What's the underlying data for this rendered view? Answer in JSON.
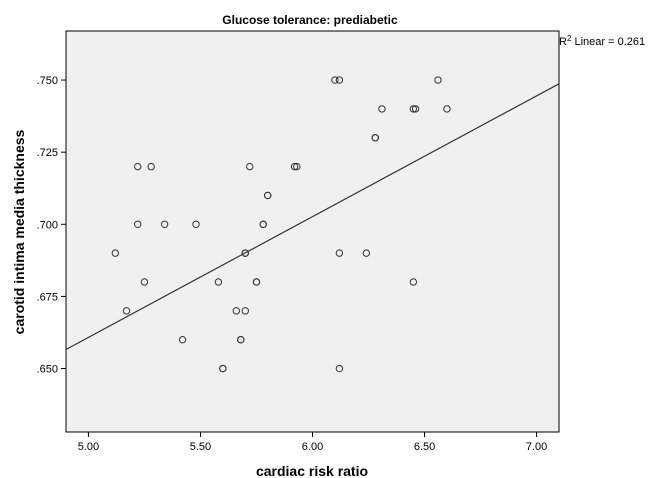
{
  "chart_data": {
    "type": "scatter",
    "title": "Glucose tolerance: prediabetic",
    "xlabel": "cardiac risk ratio",
    "ylabel": "carotid intima media thickness",
    "xlim": [
      4.9,
      7.1
    ],
    "ylim": [
      0.628,
      0.767
    ],
    "x_ticks": [
      5.0,
      5.5,
      6.0,
      6.5,
      7.0
    ],
    "x_tick_labels": [
      "5.00",
      "5.50",
      "6.00",
      "6.50",
      "7.00"
    ],
    "y_ticks": [
      0.65,
      0.675,
      0.7,
      0.725,
      0.75
    ],
    "y_tick_labels": [
      ".650",
      ".675",
      ".700",
      ".725",
      ".750"
    ],
    "grid": false,
    "fit_line": {
      "label_prefix": "R",
      "label_sup": "2",
      "label_rest": " Linear = 0.261",
      "x": [
        4.9,
        7.1
      ],
      "y": [
        0.6566,
        0.7487
      ]
    },
    "points": [
      {
        "x": 5.12,
        "y": 0.69
      },
      {
        "x": 5.17,
        "y": 0.67
      },
      {
        "x": 5.22,
        "y": 0.72
      },
      {
        "x": 5.28,
        "y": 0.72
      },
      {
        "x": 5.22,
        "y": 0.7
      },
      {
        "x": 5.25,
        "y": 0.68
      },
      {
        "x": 5.34,
        "y": 0.7
      },
      {
        "x": 5.42,
        "y": 0.66
      },
      {
        "x": 5.48,
        "y": 0.7
      },
      {
        "x": 5.58,
        "y": 0.68
      },
      {
        "x": 5.6,
        "y": 0.65
      },
      {
        "x": 5.6,
        "y": 0.65
      },
      {
        "x": 5.66,
        "y": 0.67
      },
      {
        "x": 5.68,
        "y": 0.66
      },
      {
        "x": 5.68,
        "y": 0.66
      },
      {
        "x": 5.7,
        "y": 0.67
      },
      {
        "x": 5.7,
        "y": 0.69
      },
      {
        "x": 5.7,
        "y": 0.69
      },
      {
        "x": 5.72,
        "y": 0.72
      },
      {
        "x": 5.75,
        "y": 0.68
      },
      {
        "x": 5.75,
        "y": 0.68
      },
      {
        "x": 5.78,
        "y": 0.7
      },
      {
        "x": 5.78,
        "y": 0.7
      },
      {
        "x": 5.8,
        "y": 0.71
      },
      {
        "x": 5.8,
        "y": 0.71
      },
      {
        "x": 5.92,
        "y": 0.72
      },
      {
        "x": 5.93,
        "y": 0.72
      },
      {
        "x": 6.1,
        "y": 0.75
      },
      {
        "x": 6.12,
        "y": 0.75
      },
      {
        "x": 6.12,
        "y": 0.69
      },
      {
        "x": 6.12,
        "y": 0.65
      },
      {
        "x": 6.24,
        "y": 0.69
      },
      {
        "x": 6.28,
        "y": 0.73
      },
      {
        "x": 6.28,
        "y": 0.73
      },
      {
        "x": 6.31,
        "y": 0.74
      },
      {
        "x": 6.45,
        "y": 0.74
      },
      {
        "x": 6.46,
        "y": 0.74
      },
      {
        "x": 6.45,
        "y": 0.68
      },
      {
        "x": 6.56,
        "y": 0.75
      },
      {
        "x": 6.6,
        "y": 0.74
      }
    ],
    "colors": {
      "plot_background": "#f0f0f0",
      "marker_stroke": "#333333",
      "line": "#333333",
      "frame": "#000000"
    }
  }
}
